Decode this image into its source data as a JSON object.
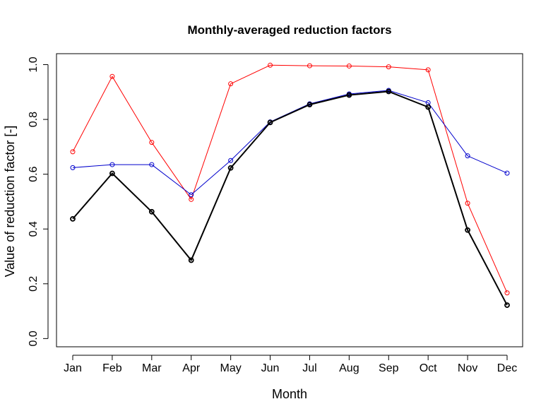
{
  "chart_data": {
    "type": "line",
    "title": "Monthly-averaged reduction factors",
    "xlabel": "Month",
    "ylabel": "Value of reduction factor [-]",
    "categories": [
      "Jan",
      "Feb",
      "Mar",
      "Apr",
      "May",
      "Jun",
      "Jul",
      "Aug",
      "Sep",
      "Oct",
      "Nov",
      "Dec"
    ],
    "ylim": [
      -0.03,
      1.04
    ],
    "yticks": [
      "0.0",
      "0.2",
      "0.4",
      "0.6",
      "0.8",
      "1.0"
    ],
    "grid": false,
    "legend": "none",
    "series": [
      {
        "name": "red",
        "color": "#ff0000",
        "values": [
          0.682,
          0.957,
          0.716,
          0.508,
          0.93,
          0.998,
          0.996,
          0.995,
          0.992,
          0.981,
          0.494,
          0.167
        ]
      },
      {
        "name": "blue",
        "color": "#0000cc",
        "values": [
          0.624,
          0.635,
          0.635,
          0.525,
          0.65,
          0.791,
          0.857,
          0.893,
          0.906,
          0.861,
          0.667,
          0.604
        ]
      },
      {
        "name": "black",
        "color": "#000000",
        "values": [
          0.437,
          0.603,
          0.463,
          0.286,
          0.623,
          0.789,
          0.854,
          0.889,
          0.902,
          0.845,
          0.396,
          0.122
        ]
      }
    ]
  }
}
